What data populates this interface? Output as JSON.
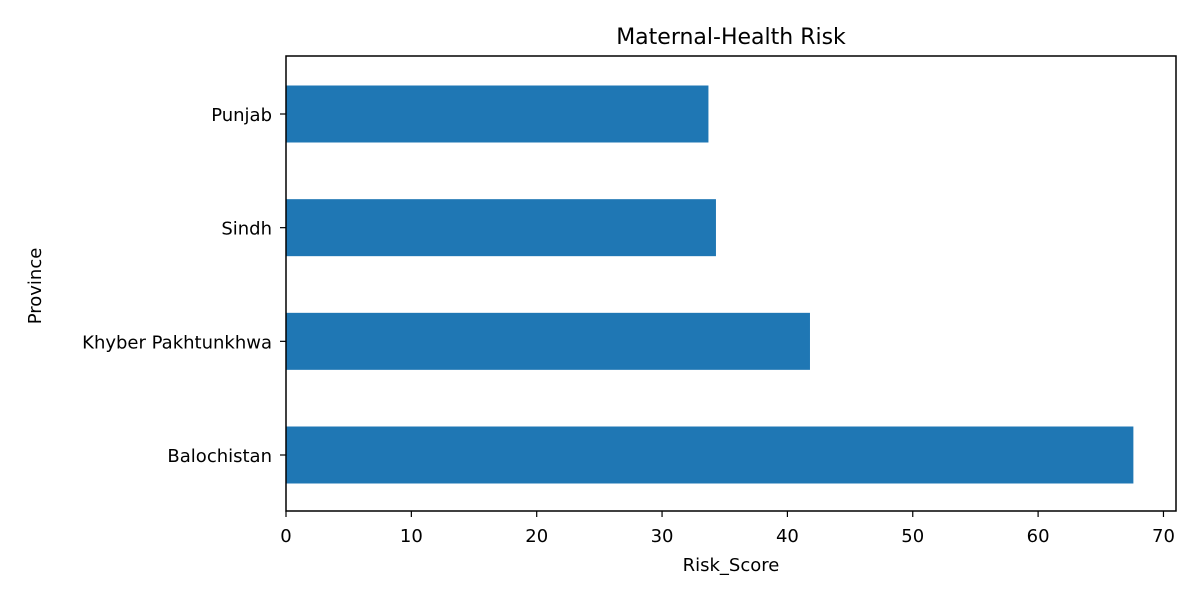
{
  "chart_data": {
    "type": "bar",
    "orientation": "horizontal",
    "title": "Maternal-Health Risk",
    "xlabel": "Risk_Score",
    "ylabel": "Province",
    "categories": [
      "Balochistan",
      "Khyber Pakhtunkhwa",
      "Sindh",
      "Punjab"
    ],
    "values": [
      67.6,
      41.8,
      34.3,
      33.7
    ],
    "xlim": [
      0,
      71
    ],
    "xticks": [
      0,
      10,
      20,
      30,
      40,
      50,
      60,
      70
    ],
    "grid": false,
    "legend": "none",
    "bar_color": "#1f77b4"
  }
}
